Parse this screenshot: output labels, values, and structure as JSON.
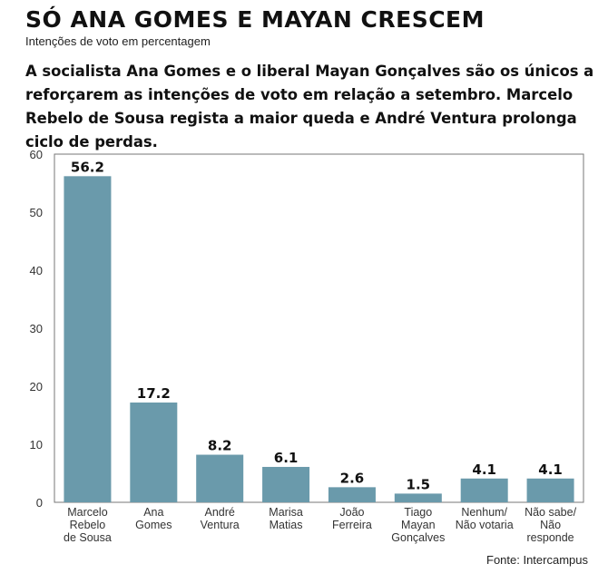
{
  "title": "SÓ ANA GOMES E MAYAN CRESCEM",
  "subtitle": "Intenções de voto em percentagem",
  "lead": "A socialista Ana Gomes e o liberal Mayan Gonçalves são os únicos a reforçarem as intenções de voto em relação a setembro. Marcelo Rebelo de Sousa regista a maior queda e André Ventura prolonga ciclo de perdas.",
  "source": "Fonte: Intercampus",
  "colors": {
    "bar": "#6a9aab",
    "frame": "#777777"
  },
  "chart_data": {
    "type": "bar",
    "categories": [
      [
        "Marcelo",
        "Rebelo",
        "de Sousa"
      ],
      [
        "Ana",
        "Gomes"
      ],
      [
        "André",
        "Ventura"
      ],
      [
        "Marisa",
        "Matias"
      ],
      [
        "João",
        "Ferreira"
      ],
      [
        "Tiago",
        "Mayan",
        "Gonçalves"
      ],
      [
        "Nenhum/",
        "Não votaria"
      ],
      [
        "Não sabe/",
        "Não",
        "responde"
      ]
    ],
    "values": [
      56.2,
      17.2,
      8.2,
      6.1,
      2.6,
      1.5,
      4.1,
      4.1
    ],
    "value_labels": [
      "56.2",
      "17.2",
      "8.2",
      "6.1",
      "2.6",
      "1.5",
      "4.1",
      "4.1"
    ],
    "yticks": [
      "0",
      "10",
      "20",
      "30",
      "40",
      "50",
      "60"
    ],
    "ylim": [
      0,
      60
    ],
    "grid": false,
    "legend": false
  }
}
